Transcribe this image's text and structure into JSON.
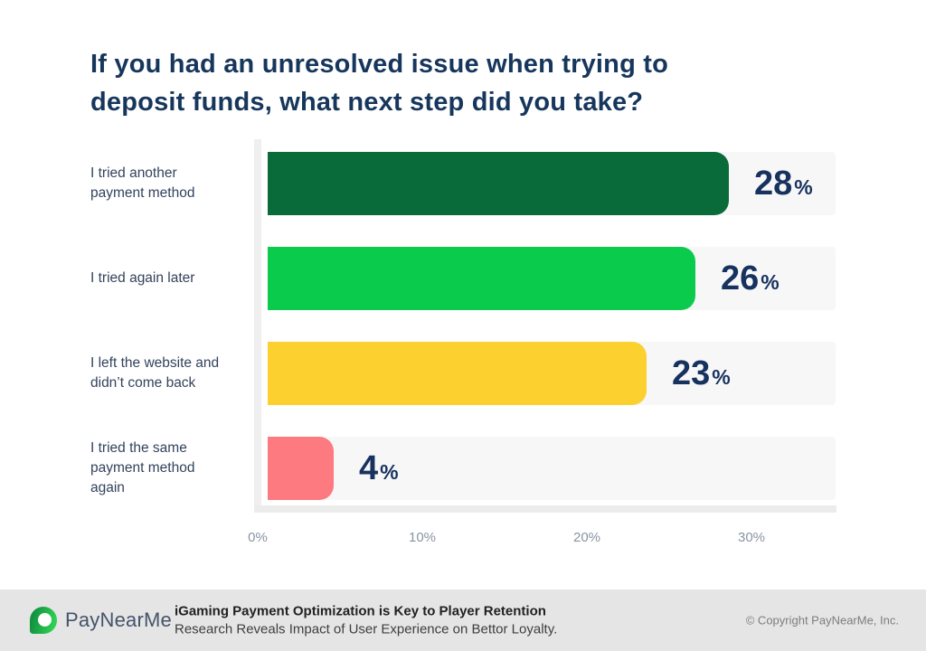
{
  "title": {
    "line1": "If you had an unresolved issue when trying to",
    "line2": "deposit funds, what next step did you take?"
  },
  "chart_data": {
    "type": "bar",
    "orientation": "horizontal",
    "title": "If you had an unresolved issue when trying to deposit funds, what next step did you take?",
    "categories": [
      "I tried another\npayment method",
      "I tried again later",
      "I left the website and\ndidn’t come back",
      "I tried the same\npayment method\nagain"
    ],
    "values": [
      28,
      26,
      23,
      4
    ],
    "value_labels": [
      "28%",
      "26%",
      "23%",
      "4%"
    ],
    "bar_colors": [
      "#0a6b3a",
      "#0bcb4c",
      "#fbd02f",
      "#fc7a80"
    ],
    "x_ticks": [
      "0%",
      "10%",
      "20%",
      "30%"
    ],
    "xlim": [
      0,
      35
    ],
    "grid": false,
    "legend": "none",
    "track_color": "#f7f7f8",
    "value_label_color": "#17325e"
  },
  "footer": {
    "brand": "PayNearMe",
    "logo_icon": "paynearme-speech-bubble-icon",
    "logo_color": "#22a946",
    "caption_title": "iGaming Payment Optimization is Key to Player Retention",
    "caption_subtitle": "Research Reveals Impact of User Experience on Bettor Loyalty.",
    "copyright": "© Copyright PayNearMe, Inc."
  }
}
